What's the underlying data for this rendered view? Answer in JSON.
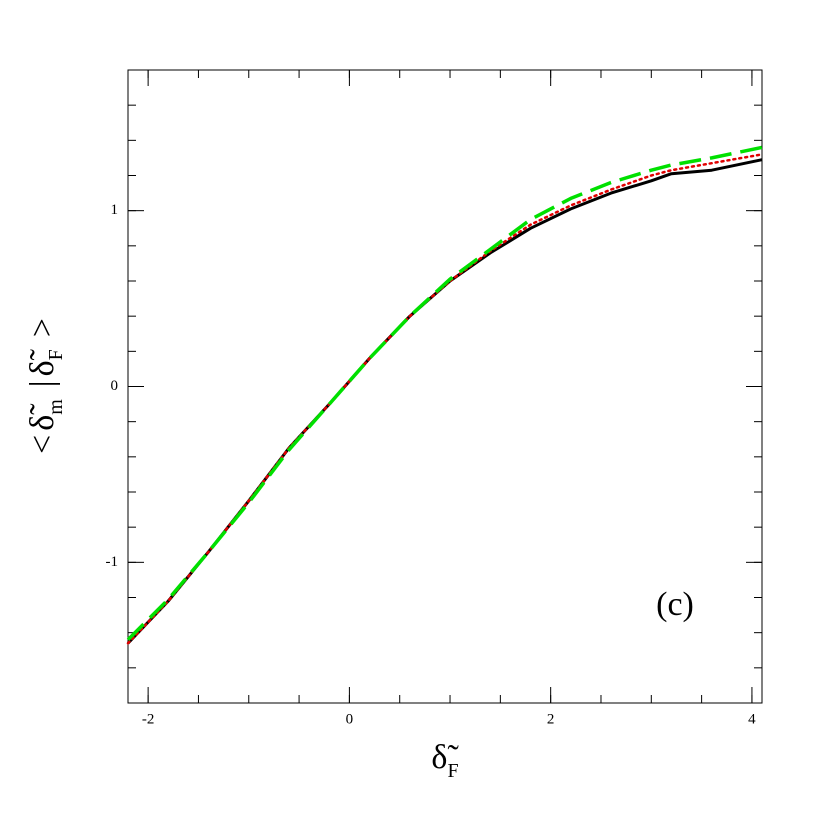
{
  "chart_data": {
    "type": "line",
    "x_label": [
      "δ̃",
      "F"
    ],
    "y_label": [
      "<",
      "δ̃",
      "m",
      "|",
      "δ̃",
      "F",
      ">"
    ],
    "annotation": "(c)",
    "x": [
      -2.2,
      -1.8,
      -1.4,
      -1.0,
      -0.6,
      -0.2,
      0.2,
      0.6,
      1.0,
      1.4,
      1.8,
      2.2,
      2.6,
      3.0,
      3.2,
      3.6,
      4.1
    ],
    "series": [
      {
        "color": "#000000",
        "style": "solid",
        "values": [
          -1.46,
          -1.22,
          -0.94,
          -0.65,
          -0.35,
          -0.1,
          0.16,
          0.4,
          0.6,
          0.76,
          0.9,
          1.01,
          1.1,
          1.17,
          1.21,
          1.23,
          1.29
        ]
      },
      {
        "color": "#e00000",
        "style": "dotted",
        "values": [
          -1.46,
          -1.22,
          -0.94,
          -0.65,
          -0.35,
          -0.1,
          0.16,
          0.4,
          0.6,
          0.77,
          0.92,
          1.03,
          1.12,
          1.2,
          1.23,
          1.27,
          1.32
        ]
      },
      {
        "color": "#00e000",
        "style": "dashed",
        "values": [
          -1.44,
          -1.21,
          -0.94,
          -0.66,
          -0.36,
          -0.1,
          0.16,
          0.4,
          0.61,
          0.78,
          0.95,
          1.07,
          1.16,
          1.23,
          1.26,
          1.3,
          1.36
        ]
      }
    ],
    "xlim": [
      -2.2,
      4.1
    ],
    "ylim": [
      -1.8,
      1.8
    ],
    "xticks": [
      -2,
      0,
      2,
      4
    ],
    "yticks": [
      -1,
      0,
      1
    ],
    "x_minor_ticks": [
      -2.0,
      -1.5,
      -1.0,
      -0.5,
      0.0,
      0.5,
      1.0,
      1.5,
      2.0,
      2.5,
      3.0,
      3.5,
      4.0
    ],
    "y_minor_ticks": [
      -1.8,
      -1.6,
      -1.4,
      -1.2,
      -1.0,
      -0.8,
      -0.6,
      -0.4,
      -0.2,
      0.0,
      0.2,
      0.4,
      0.6,
      0.8,
      1.0,
      1.2,
      1.4,
      1.6,
      1.8
    ]
  }
}
